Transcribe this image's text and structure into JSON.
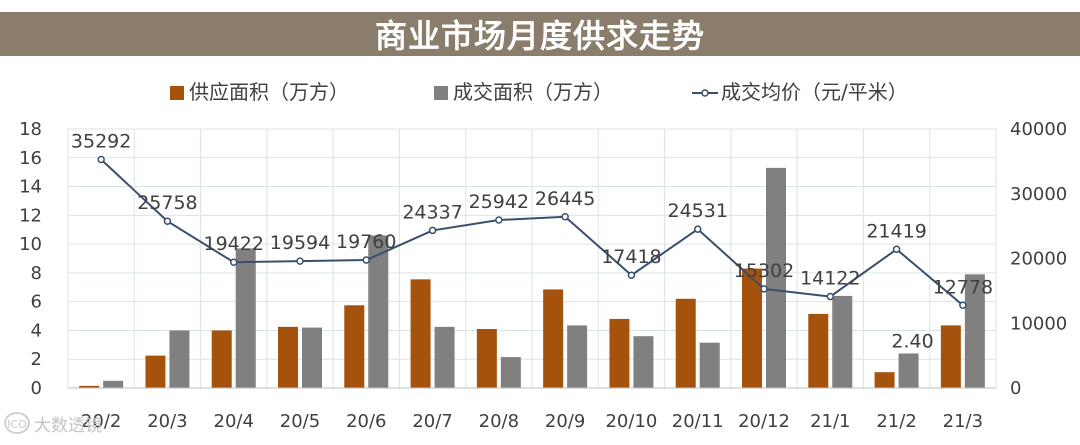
{
  "header": {
    "title": "商业市场月度供求走势"
  },
  "watermark": {
    "text": "大数透镜",
    "logo_text": "ICO"
  },
  "colors": {
    "supply": "#a5520c",
    "deal": "#808080",
    "price": "#3a4f6e"
  },
  "chart_data": {
    "type": "bar",
    "categories": [
      "20/2",
      "20/3",
      "20/4",
      "20/5",
      "20/6",
      "20/7",
      "20/8",
      "20/9",
      "20/10",
      "20/11",
      "20/12",
      "21/1",
      "21/2",
      "21/3"
    ],
    "series": [
      {
        "name": "供应面积（万方）",
        "type": "bar",
        "axis": "left",
        "values": [
          0.15,
          2.25,
          4.0,
          4.25,
          5.75,
          7.55,
          4.1,
          6.85,
          4.8,
          6.2,
          8.3,
          5.15,
          1.1,
          4.35
        ]
      },
      {
        "name": "成交面积（万方）",
        "type": "bar",
        "axis": "left",
        "values": [
          0.5,
          4.0,
          9.7,
          4.2,
          10.6,
          4.25,
          2.15,
          4.35,
          3.6,
          3.15,
          15.3,
          6.4,
          2.4,
          7.9
        ]
      },
      {
        "name": "成交均价（元/平米）",
        "type": "line",
        "axis": "right",
        "values": [
          35292,
          25758,
          19422,
          19594,
          19760,
          24337,
          25942,
          26445,
          17418,
          24531,
          15302,
          14122,
          21419,
          12778
        ]
      }
    ],
    "data_labels": {
      "price": [
        "35292",
        "25758",
        "19422",
        "19594",
        "19760",
        "24337",
        "25942",
        "26445",
        "17418",
        "24531",
        "15302",
        "14122",
        "21419",
        "12778"
      ],
      "deal_2102": "2.40"
    },
    "y_left": {
      "min": 0,
      "max": 18,
      "step": 2,
      "ticks": [
        "0",
        "2",
        "4",
        "6",
        "8",
        "10",
        "12",
        "14",
        "16",
        "18"
      ]
    },
    "y_right": {
      "min": 0,
      "max": 40000,
      "step": 10000,
      "ticks": [
        "0",
        "10000",
        "20000",
        "30000",
        "40000"
      ]
    },
    "grid": true,
    "legend_position": "top-center"
  }
}
